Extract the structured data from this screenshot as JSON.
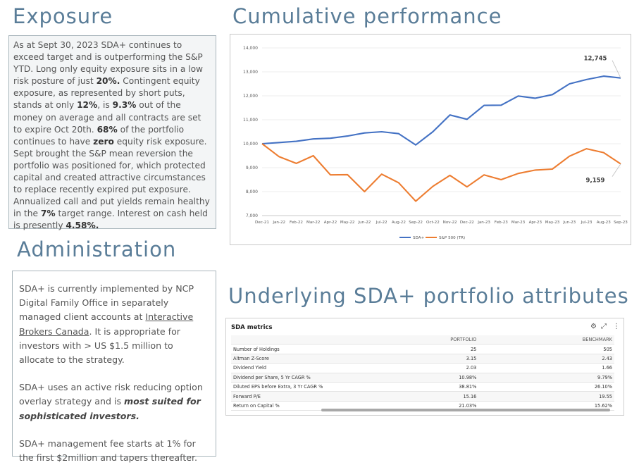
{
  "exposure": {
    "heading": "Exposure",
    "p1": [
      {
        "t": "As at Sept 30, 2023 SDA+ continues to exceed target and is outperforming the S&P YTD. Long only equity exposure sits in a low risk posture of just "
      },
      {
        "t": "20%.",
        "b": true
      },
      {
        "t": " Contingent equity exposure, as represented by short puts, stands at only "
      },
      {
        "t": "12%",
        "b": true
      },
      {
        "t": ", is "
      },
      {
        "t": "9.3%",
        "b": true
      },
      {
        "t": " out of the money on average and all contracts are set to expire Oct 20th. "
      },
      {
        "t": "68%",
        "b": true
      },
      {
        "t": " of the portfolio continues to have "
      },
      {
        "t": "zero",
        "b": true
      },
      {
        "t": " equity risk exposure."
      }
    ],
    "p2": [
      {
        "t": "Sept brought the S&P mean reversion the portfolio was positioned for, which protected capital and created attractive circumstances to replace recently expired put exposure."
      }
    ],
    "p3": [
      {
        "t": "Annualized call and put yields remain healthy in the "
      },
      {
        "t": "7%",
        "b": true
      },
      {
        "t": " target range. Interest on cash held is presently "
      },
      {
        "t": "4.58%.",
        "b": true
      }
    ]
  },
  "administration": {
    "heading": "Administration",
    "p1": [
      {
        "t": "SDA+ is currently implemented by NCP Digital Family Office in separately managed client accounts at "
      },
      {
        "t": "Interactive Brokers Canada",
        "u": true
      },
      {
        "t": ".  It is appropriate for investors with > US $1.5 million to allocate to the strategy."
      }
    ],
    "p2": [
      {
        "t": "SDA+ uses an active risk reducing option overlay strategy and is "
      },
      {
        "t": "most suited for sophisticated investors.",
        "bi": true
      }
    ],
    "p3": [
      {
        "t": "SDA+ management fee starts at 1% for the first $2million and tapers thereafter."
      }
    ]
  },
  "performance": {
    "heading": "Cumulative performance"
  },
  "attributes": {
    "heading": "Underlying SDA+ portfolio attributes"
  },
  "chart_data": {
    "type": "line",
    "categories": [
      "Dec-21",
      "Jan-22",
      "Feb-22",
      "Mar-22",
      "Apr-22",
      "May-22",
      "Jun-22",
      "Jul-22",
      "Aug-22",
      "Sep-22",
      "Oct-22",
      "Nov-22",
      "Dec-22",
      "Jan-23",
      "Feb-23",
      "Mar-23",
      "Apr-23",
      "May-23",
      "Jun-23",
      "Jul-23",
      "Aug-23",
      "Sep-23"
    ],
    "series": [
      {
        "name": "SDA+",
        "color": "#4472c4",
        "values": [
          10000,
          10050,
          10100,
          10200,
          10230,
          10320,
          10450,
          10500,
          10420,
          9950,
          10500,
          11200,
          11020,
          11600,
          11610,
          11990,
          11900,
          12050,
          12500,
          12680,
          12820,
          12745
        ]
      },
      {
        "name": "S&P 500 (TR)",
        "color": "#ed7d31",
        "values": [
          10000,
          9460,
          9180,
          9500,
          8700,
          8710,
          8000,
          8730,
          8370,
          7600,
          8220,
          8680,
          8200,
          8700,
          8500,
          8760,
          8900,
          8940,
          9480,
          9790,
          9630,
          9159
        ]
      }
    ],
    "ylim": [
      7000,
      14000
    ],
    "yticks": [
      "7,000",
      "8,000",
      "9,000",
      "10,000",
      "11,000",
      "12,000",
      "13,000",
      "14,000"
    ],
    "annotations": [
      {
        "series": 0,
        "text": "12,745"
      },
      {
        "series": 1,
        "text": "9,159"
      }
    ],
    "legend_position": "bottom",
    "grid": true
  },
  "metrics": {
    "title": "SDA metrics",
    "icons": [
      "gear-icon",
      "expand-icon",
      "more-vert-icon"
    ],
    "columns": [
      "",
      "PORTFOLIO",
      "BENCHMARK"
    ],
    "rows": [
      [
        "Number of Holdings",
        "25",
        "505"
      ],
      [
        "Altman Z-Score",
        "3.15",
        "2.43"
      ],
      [
        "Dividend Yield",
        "2.03",
        "1.66"
      ],
      [
        "Dividend per Share, 5 Yr CAGR %",
        "10.98%",
        "9.79%"
      ],
      [
        "Diluted EPS before Extra, 3 Yr CAGR %",
        "38.81%",
        "26.10%"
      ],
      [
        "Forward P/E",
        "15.16",
        "19.55"
      ],
      [
        "Return on Capital %",
        "21.03%",
        "15.62%"
      ]
    ]
  }
}
